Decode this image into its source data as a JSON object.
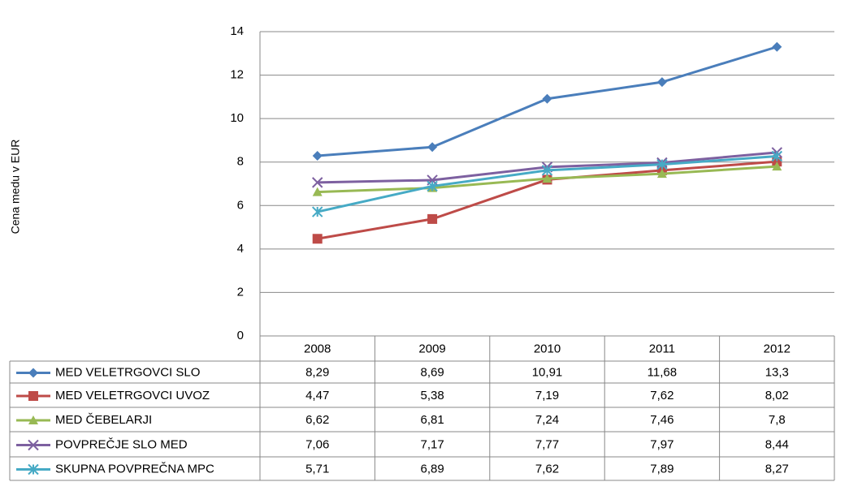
{
  "chart_data": {
    "type": "line",
    "y_label": "Cena medu v EUR",
    "categories": [
      "2008",
      "2009",
      "2010",
      "2011",
      "2012"
    ],
    "series": [
      {
        "name": "MED VELETRGOVCI SLO",
        "color": "#4a7ebb",
        "marker": "diamond",
        "values": [
          8.29,
          8.69,
          10.91,
          11.68,
          13.3
        ],
        "value_labels": [
          "8,29",
          "8,69",
          "10,91",
          "11,68",
          "13,3"
        ]
      },
      {
        "name": "MED VELETRGOVCI UVOZ",
        "color": "#be4b48",
        "marker": "square",
        "values": [
          4.47,
          5.38,
          7.19,
          7.62,
          8.02
        ],
        "value_labels": [
          "4,47",
          "5,38",
          "7,19",
          "7,62",
          "8,02"
        ]
      },
      {
        "name": "MED ČEBELARJI",
        "color": "#98b954",
        "marker": "triangle",
        "values": [
          6.62,
          6.81,
          7.24,
          7.46,
          7.8
        ],
        "value_labels": [
          "6,62",
          "6,81",
          "7,24",
          "7,46",
          "7,8"
        ]
      },
      {
        "name": "POVPREČJE SLO MED",
        "color": "#7d60a0",
        "marker": "x",
        "values": [
          7.06,
          7.17,
          7.77,
          7.97,
          8.44
        ],
        "value_labels": [
          "7,06",
          "7,17",
          "7,77",
          "7,97",
          "8,44"
        ]
      },
      {
        "name": "SKUPNA POVPREČNA MPC",
        "color": "#46aac5",
        "marker": "star",
        "values": [
          5.71,
          6.89,
          7.62,
          7.89,
          8.27
        ],
        "value_labels": [
          "5,71",
          "6,89",
          "7,62",
          "7,89",
          "8,27"
        ]
      }
    ],
    "ylim": [
      0,
      14
    ],
    "yticks": [
      0,
      2,
      4,
      6,
      8,
      10,
      12,
      14
    ],
    "grid": true
  }
}
